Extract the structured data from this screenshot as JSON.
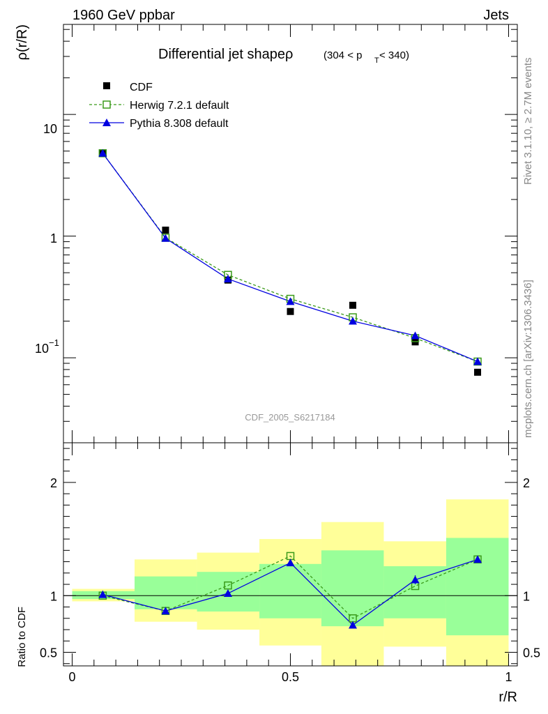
{
  "header": {
    "left": "1960 GeV ppbar",
    "right": "Jets"
  },
  "side": {
    "rivet": "Rivet 3.1.10, ≥ 2.7M events",
    "mcplots": "mcplots.cern.ch [arXiv:1306.3436]"
  },
  "chart_data": [
    {
      "type": "scatter",
      "title_main": "Differential jet shapeρ",
      "title_sub": "(304 < p",
      "title_sub_T": "T",
      "title_sub_end": " < 340)",
      "ylabel": "ρ(r/R)",
      "yscale": "log",
      "ylim": [
        0.02,
        55
      ],
      "xlim": [
        -0.02,
        1.02
      ],
      "ytick_labels": {
        "t10": "10",
        "t1": "1",
        "tm1_base": "10",
        "tm1_exp": "−1"
      },
      "watermark": "CDF_2005_S6217184",
      "legend_position": "top-left",
      "series": [
        {
          "name": "CDF",
          "color": "#000000",
          "marker": "filled-square",
          "x": [
            0.07,
            0.214,
            0.357,
            0.5,
            0.643,
            0.786,
            0.929
          ],
          "y": [
            4.8,
            1.12,
            0.435,
            0.24,
            0.27,
            0.135,
            0.076
          ]
        },
        {
          "name": "Herwig 7.2.1 default",
          "color": "#3a9a1a",
          "marker": "open-square",
          "line": "dashed",
          "x": [
            0.07,
            0.214,
            0.357,
            0.5,
            0.643,
            0.786,
            0.929
          ],
          "y": [
            4.8,
            0.97,
            0.48,
            0.305,
            0.215,
            0.145,
            0.093
          ]
        },
        {
          "name": "Pythia 8.308 default",
          "color": "#0000e0",
          "marker": "filled-triangle",
          "line": "solid",
          "x": [
            0.07,
            0.214,
            0.357,
            0.5,
            0.643,
            0.786,
            0.929
          ],
          "y": [
            4.8,
            0.96,
            0.445,
            0.29,
            0.2,
            0.152,
            0.093
          ]
        }
      ]
    },
    {
      "type": "line",
      "ylabel": "Ratio to CDF",
      "xlabel": "r/R",
      "ylim": [
        0.38,
        2.35
      ],
      "xlim": [
        -0.02,
        1.02
      ],
      "xtick_labels": [
        "0",
        "0.5",
        "1"
      ],
      "ytick_labels": [
        "0.5",
        "1",
        "2"
      ],
      "ytick_values": [
        0.5,
        1,
        2
      ],
      "reference_line": 1,
      "bins": [
        {
          "lo": 0.0,
          "hi": 0.143,
          "inner": [
            0.97,
            1.04
          ],
          "outer": [
            0.95,
            1.06
          ]
        },
        {
          "lo": 0.143,
          "hi": 0.286,
          "inner": [
            0.88,
            1.17
          ],
          "outer": [
            0.77,
            1.32
          ]
        },
        {
          "lo": 0.286,
          "hi": 0.429,
          "inner": [
            0.86,
            1.21
          ],
          "outer": [
            0.7,
            1.38
          ]
        },
        {
          "lo": 0.429,
          "hi": 0.571,
          "inner": [
            0.8,
            1.28
          ],
          "outer": [
            0.56,
            1.5
          ]
        },
        {
          "lo": 0.571,
          "hi": 0.714,
          "inner": [
            0.73,
            1.4
          ],
          "outer": [
            0.35,
            1.65
          ]
        },
        {
          "lo": 0.714,
          "hi": 0.857,
          "inner": [
            0.8,
            1.26
          ],
          "outer": [
            0.55,
            1.48
          ]
        },
        {
          "lo": 0.857,
          "hi": 1.0,
          "inner": [
            0.65,
            1.51
          ],
          "outer": [
            0.35,
            1.85
          ]
        }
      ],
      "series": [
        {
          "name": "Herwig 7.2.1 default",
          "color": "#3a9a1a",
          "marker": "open-square",
          "line": "dashed",
          "x": [
            0.07,
            0.214,
            0.357,
            0.5,
            0.643,
            0.786,
            0.929
          ],
          "y": [
            1.0,
            0.865,
            1.09,
            1.35,
            0.8,
            1.085,
            1.32
          ]
        },
        {
          "name": "Pythia 8.308 default",
          "color": "#0000e0",
          "marker": "filled-triangle",
          "line": "solid",
          "x": [
            0.07,
            0.214,
            0.357,
            0.5,
            0.643,
            0.786,
            0.929
          ],
          "y": [
            1.01,
            0.865,
            1.02,
            1.29,
            0.74,
            1.14,
            1.32
          ],
          "err": [
            0.02,
            0.015,
            0.02,
            0.03,
            0.02,
            0.04,
            0.03
          ]
        }
      ]
    }
  ]
}
